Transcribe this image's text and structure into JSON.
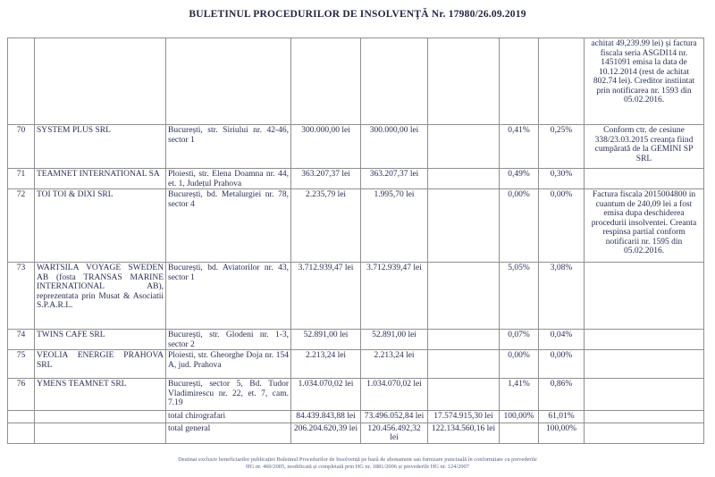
{
  "page": {
    "title": "BULETINUL PROCEDURILOR DE INSOLVENŢĂ Nr. 17980/26.09.2019"
  },
  "footer": {
    "line1": "Destinat exclusiv beneficiarilor publicației Buletinul Procedurilor de Insolvență pe bază de abonament sau furnizare punctuală în conformitate cu prevederile",
    "line2": "HG nr. 460/2005, modificată și completată prin HG nr. 1881/2006 și prevederile HG nr. 124/2007"
  },
  "table": {
    "rows": [
      {
        "nr": "",
        "name": "",
        "address": "",
        "amount1": "",
        "amount2": "",
        "amount3": "",
        "pct1": "",
        "pct2": "",
        "obs": "achitat 49,239.99 lei) și factura fiscala seria ASGDI14 nr. 1451091 emisa la data de 10.12.2014 (rest de achitat 802.74 lei). Creditor instiintat prin notificarea nr. 1593 din 05.02.2016."
      },
      {
        "nr": "70",
        "name": "SYSTEM PLUS SRL",
        "address": "București, str. Siriului nr. 42-46, sector 1",
        "amount1": "300.000,00 lei",
        "amount2": "300.000,00 lei",
        "amount3": "",
        "pct1": "0,41%",
        "pct2": "0,25%",
        "obs": "Conform ctr. de cesiune 338/23.03.2015 creanța fiind cumpărată de la GEMINI SP SRL"
      },
      {
        "nr": "71",
        "name": "TEAMNET INTERNATIONAL SA",
        "address": "Ploiesti, str. Elena Doamna nr. 44, et. 1, Județul Prahova",
        "amount1": "363.207,37 lei",
        "amount2": "363.207,37 lei",
        "amount3": "",
        "pct1": "0,49%",
        "pct2": "0,30%",
        "obs": ""
      },
      {
        "nr": "72",
        "name": "TOI TOI & DIXI SRL",
        "address": "București, bd. Metalurgiei nr. 78, sector 4",
        "amount1": "2.235,79 lei",
        "amount2": "1.995,70 lei",
        "amount3": "",
        "pct1": "0,00%",
        "pct2": "0,00%",
        "obs": "Factura fiscala 2015004800 in cuantum de 240,09 lei a fost emisa dupa deschiderea procedurii insolventei. Creanta respinsa partial conform notificarii nr. 1595 din 05.02.2016."
      },
      {
        "nr": "73",
        "name": "WARTSILA VOYAGE SWEDEN AB (fosta TRANSAS MARINE INTERNATIONAL AB), reprezentata prin Musat & Asociatii S.P.A.R.L.",
        "address": "București, bd. Aviatorilor nr. 43, sector 1",
        "amount1": "3.712.939,47 lei",
        "amount2": "3.712.939,47 lei",
        "amount3": "",
        "pct1": "5,05%",
        "pct2": "3,08%",
        "obs": ""
      },
      {
        "nr": "74",
        "name": "TWINS CAFE SRL",
        "address": "București, str. Glodeni nr. 1-3, sector 2",
        "amount1": "52.891,00 lei",
        "amount2": "52.891,00 lei",
        "amount3": "",
        "pct1": "0,07%",
        "pct2": "0,04%",
        "obs": ""
      },
      {
        "nr": "75",
        "name": "VEOLIA ENERGIE PRAHOVA SRL",
        "address": "Ploiesti, str. Gheorghe Doja nr. 154 A, jud. Prahova",
        "amount1": "2.213,24 lei",
        "amount2": "2.213,24 lei",
        "amount3": "",
        "pct1": "0,00%",
        "pct2": "0,00%",
        "obs": ""
      },
      {
        "nr": "76",
        "name": "YMENS TEAMNET SRL",
        "address": "București, sector 5, Bd. Tudor Vladimirescu nr. 22, et. 7, cam. 7.19",
        "amount1": "1.034.070,02 lei",
        "amount2": "1.034.070,02 lei",
        "amount3": "",
        "pct1": "1,41%",
        "pct2": "0,86%",
        "obs": ""
      },
      {
        "nr": "",
        "name": "",
        "address": "total chirografari",
        "amount1": "84.439.843,88 lei",
        "amount2": "73.496.052,84 lei",
        "amount3": "17.574.915,30 lei",
        "pct1": "100,00%",
        "pct2": "61,01%",
        "obs": ""
      },
      {
        "nr": "",
        "name": "",
        "address": "total general",
        "amount1": "206.204.620,39 lei",
        "amount2": "120.456.492,32 lei",
        "amount3": "122.134.560,16 lei",
        "pct1": "",
        "pct2": "100,00%",
        "obs": ""
      }
    ]
  }
}
